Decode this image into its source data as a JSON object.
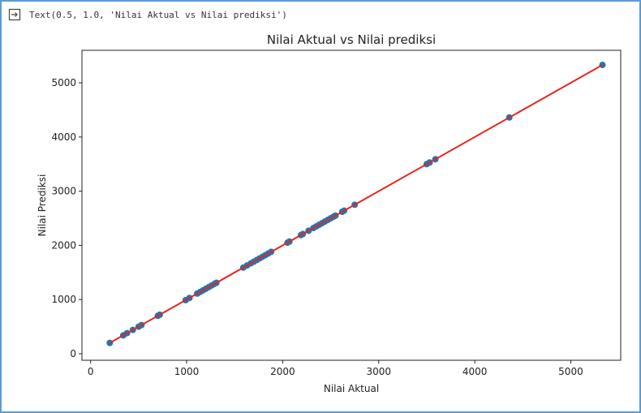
{
  "output": {
    "text": "Text(0.5, 1.0, 'Nilai Aktual vs Nilai prediksi')",
    "icon": "output-arrow-icon"
  },
  "chart_data": {
    "type": "scatter",
    "title": "Nilai Aktual vs Nilai prediksi",
    "xlabel": "Nilai Aktual",
    "ylabel": "Nilai Prediksi",
    "xlim": [
      -90,
      5520
    ],
    "ylim": [
      -120,
      5600
    ],
    "xticks": [
      0,
      1000,
      2000,
      3000,
      4000,
      5000
    ],
    "yticks": [
      0,
      1000,
      2000,
      3000,
      4000,
      5000
    ],
    "grid": false,
    "colors": {
      "points": "#1f77b4",
      "line": "#e8251f",
      "frame": "#5b9bd5"
    },
    "series": [
      {
        "type": "scatter",
        "x": [
          200,
          340,
          380,
          440,
          500,
          530,
          700,
          720,
          990,
          1030,
          1110,
          1140,
          1170,
          1200,
          1230,
          1260,
          1290,
          1310,
          1590,
          1630,
          1670,
          1700,
          1730,
          1760,
          1790,
          1820,
          1850,
          1880,
          2050,
          2070,
          2190,
          2210,
          2270,
          2320,
          2350,
          2380,
          2410,
          2440,
          2470,
          2500,
          2530,
          2550,
          2620,
          2640,
          2750,
          3500,
          3530,
          3590,
          4360,
          5330
        ],
        "y": [
          200,
          340,
          380,
          440,
          500,
          530,
          700,
          720,
          990,
          1030,
          1110,
          1140,
          1170,
          1200,
          1230,
          1260,
          1290,
          1310,
          1590,
          1630,
          1670,
          1700,
          1730,
          1760,
          1790,
          1820,
          1850,
          1880,
          2050,
          2070,
          2190,
          2210,
          2270,
          2320,
          2350,
          2380,
          2410,
          2440,
          2470,
          2500,
          2530,
          2550,
          2620,
          2640,
          2750,
          3500,
          3530,
          3590,
          4360,
          5330
        ]
      },
      {
        "type": "line",
        "x": [
          200,
          5330
        ],
        "y": [
          200,
          5330
        ]
      }
    ]
  }
}
